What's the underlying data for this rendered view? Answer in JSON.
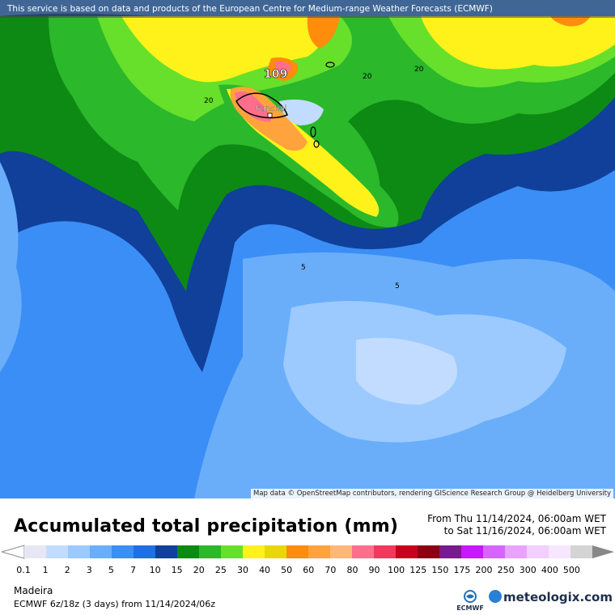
{
  "top_notice": "This service is based on data and products of the European Centre for Medium-range Weather Forecasts (ECMWF)",
  "attribution": "Map data © OpenStreetMap contributors, rendering GIScience Research Group @ Heidelberg University",
  "map": {
    "city": "Funchal",
    "max_value": "109",
    "contour_labels": [
      "20",
      "20",
      "20",
      "5",
      "5"
    ]
  },
  "title": "Accumulated total precipitation (mm)",
  "period": {
    "from": "From Thu 11/14/2024, 06:00am WET",
    "to": "to Sat 11/16/2024, 06:00am WET"
  },
  "legend": {
    "ticks": [
      "0.1",
      "1",
      "2",
      "3",
      "5",
      "7",
      "10",
      "15",
      "20",
      "25",
      "30",
      "40",
      "50",
      "60",
      "70",
      "80",
      "90",
      "100",
      "125",
      "150",
      "175",
      "200",
      "250",
      "300",
      "400",
      "500"
    ],
    "colors": [
      "#e6e6f5",
      "#c2dcff",
      "#9ccaff",
      "#6aaefa",
      "#3b8ef5",
      "#1f6fe6",
      "#10409a",
      "#0d8a14",
      "#2bb82b",
      "#66e02b",
      "#fff21a",
      "#e8d80a",
      "#ff8c0a",
      "#ffa33d",
      "#ffb87a",
      "#ff6f8c",
      "#f2385c",
      "#c8001e",
      "#8c0012",
      "#7a1a8f",
      "#c818ff",
      "#d466ff",
      "#e8a3ff",
      "#f2cfff",
      "#f7e6ff",
      "#d4d4d4"
    ]
  },
  "region": "Madeira",
  "model_info": "ECMWF 6z/18z (3 days) from 11/14/2024/06z",
  "logos": {
    "ecmwf_label": "ECMWF",
    "brand": "meteologix.com"
  }
}
